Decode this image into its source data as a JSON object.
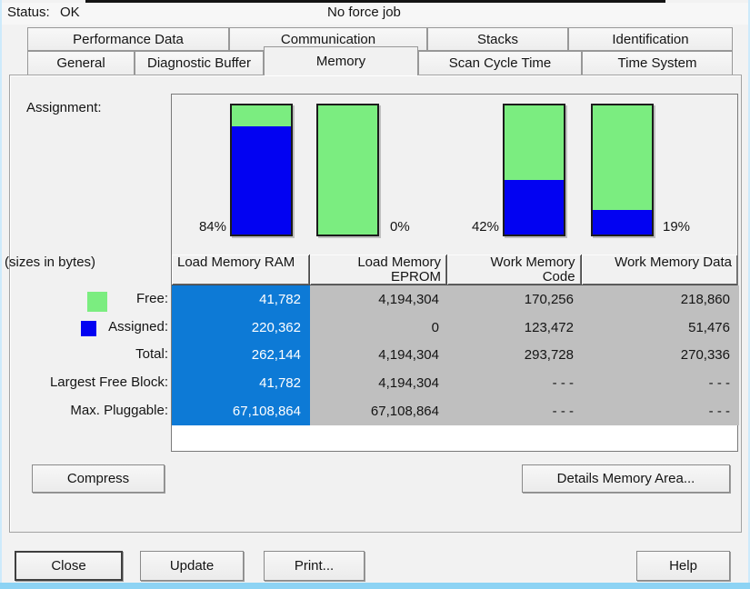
{
  "status": {
    "label": "Status:",
    "value": "OK",
    "force_job": "No force job"
  },
  "tabs": {
    "row1": [
      {
        "label": "Performance Data"
      },
      {
        "label": "Communication"
      },
      {
        "label": "Stacks"
      },
      {
        "label": "Identification"
      }
    ],
    "row2": [
      {
        "label": "General"
      },
      {
        "label": "Diagnostic Buffer"
      },
      {
        "label": "Memory"
      },
      {
        "label": "Scan Cycle Time"
      },
      {
        "label": "Time System"
      }
    ],
    "active_tab": "Memory"
  },
  "memory": {
    "assignment_label": "Assignment:",
    "sizes_note": "(sizes in bytes)",
    "percents": [
      "84%",
      "0%",
      "42%",
      "19%"
    ],
    "table": {
      "headers": [
        "Load Memory RAM",
        "Load Memory\nEPROM",
        "Work Memory\nCode",
        "Work Memory Data"
      ],
      "row_labels": [
        "Free:",
        "Assigned:",
        "Total:",
        "Largest Free Block:",
        "Max. Pluggable:"
      ],
      "rows": [
        [
          "41,782",
          "4,194,304",
          "170,256",
          "218,860"
        ],
        [
          "220,362",
          "0",
          "123,472",
          "51,476"
        ],
        [
          "262,144",
          "4,194,304",
          "293,728",
          "270,336"
        ],
        [
          "41,782",
          "4,194,304",
          "- - -",
          "- - -"
        ],
        [
          "67,108,864",
          "67,108,864",
          "- - -",
          "- - -"
        ]
      ],
      "selected_column": "Load Memory RAM"
    },
    "legend": {
      "free_label": "Free:",
      "assigned_label": "Assigned:"
    },
    "buttons": {
      "compress": "Compress",
      "details": "Details Memory Area..."
    }
  },
  "footer_buttons": {
    "close": "Close",
    "update": "Update",
    "print": "Print...",
    "help": "Help"
  },
  "colors": {
    "free_green": "#7bed80",
    "assigned_blue": "#0202f2",
    "selected_column_blue": "#0d7ad6",
    "cell_gray": "#bfbfbf",
    "window_edge_blue": "#8dd3f4"
  },
  "chart_data": {
    "type": "bar",
    "title": "Assignment",
    "categories": [
      "Load Memory RAM",
      "Load Memory EPROM",
      "Work Memory Code",
      "Work Memory Data"
    ],
    "series": [
      {
        "name": "Assigned %",
        "values": [
          84,
          0,
          42,
          19
        ]
      },
      {
        "name": "Free %",
        "values": [
          16,
          100,
          58,
          81
        ]
      }
    ],
    "unit": "%",
    "ylim": [
      0,
      100
    ],
    "legend_position": "left",
    "stacked": true
  }
}
